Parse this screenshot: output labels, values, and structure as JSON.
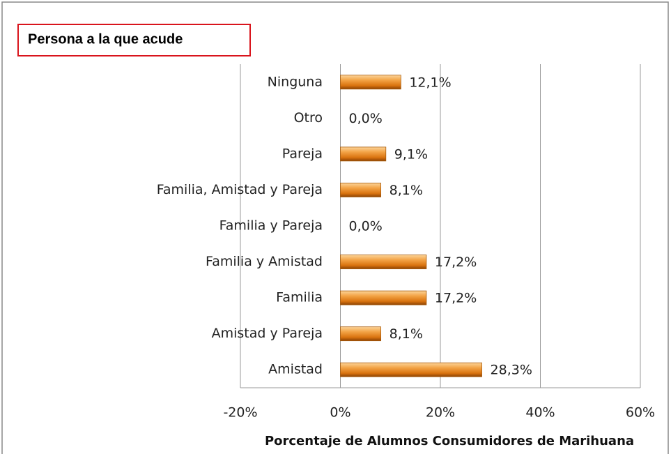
{
  "chart_data": {
    "type": "hbar",
    "title": "Persona a la que acude",
    "x_label": "Porcentaje de Alumnos Consumidores de Marihuana",
    "categories": [
      "Ninguna",
      "Otro",
      "Pareja",
      "Familia, Amistad y Pareja",
      "Familia y Pareja",
      "Familia y Amistad",
      "Familia",
      "Amistad y Pareja",
      "Amistad"
    ],
    "values": [
      12.1,
      0,
      9.1,
      8.1,
      0,
      17.2,
      17.2,
      8.1,
      28.3
    ],
    "value_labels": [
      "12,1%",
      "0,0%",
      "9,1%",
      "8,1%",
      "0,0%",
      "17,2%",
      "17,2%",
      "8,1%",
      "28,3%"
    ],
    "color": "#e8891e",
    "xlim": [
      -20,
      60
    ],
    "xticks": [
      {
        "value": -20,
        "label": "-20%"
      },
      {
        "value": 0,
        "label": "0%"
      },
      {
        "value": 20,
        "label": "20%"
      },
      {
        "value": 40,
        "label": "40%"
      },
      {
        "value": 60,
        "label": "60%"
      }
    ],
    "grid": true
  }
}
